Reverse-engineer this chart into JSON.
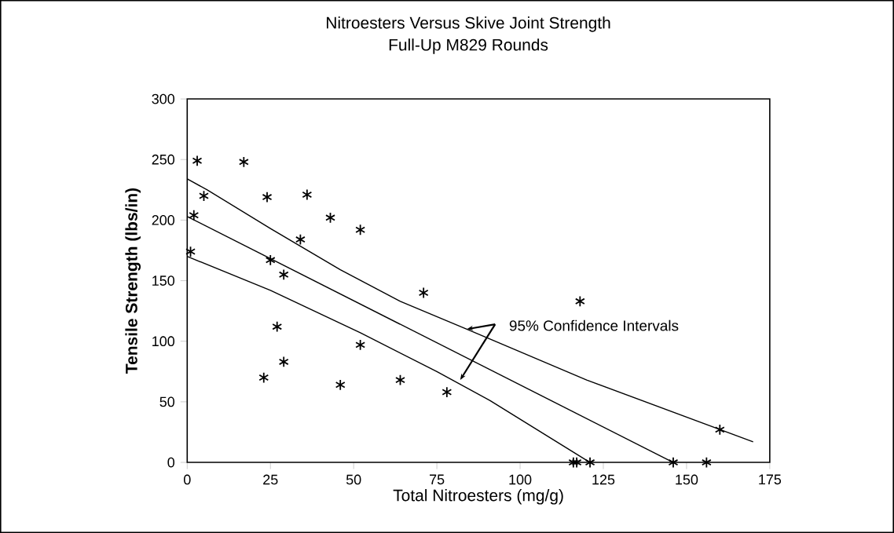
{
  "chart_data": {
    "type": "scatter",
    "title": "Nitroesters Versus Skive Joint Strength",
    "subtitle": "Full-Up M829 Rounds",
    "xlabel": "Total Nitroesters (mg/g)",
    "ylabel": "Tensile Strength (lbs/in)",
    "xlim": [
      0,
      175
    ],
    "ylim": [
      0,
      300
    ],
    "xticks": [
      0,
      25,
      50,
      75,
      100,
      125,
      150,
      175
    ],
    "yticks": [
      0,
      50,
      100,
      150,
      200,
      250,
      300
    ],
    "series": [
      {
        "marker": "cross",
        "color": "#000000",
        "x": [
          3,
          17,
          5,
          24,
          36,
          2,
          43,
          52,
          34,
          1,
          25,
          29,
          71,
          27,
          52,
          29,
          23,
          46,
          64,
          78,
          118,
          160,
          116,
          117,
          121,
          146,
          156
        ],
        "values": [
          249,
          248,
          220,
          219,
          221,
          204,
          202,
          192,
          184,
          174,
          167,
          155,
          140,
          112,
          97,
          83,
          70,
          64,
          68,
          58,
          133,
          27,
          0,
          0,
          0,
          0,
          0
        ]
      },
      {
        "type": "line",
        "marker": "none",
        "color": "#000000",
        "x": [
          0,
          146
        ],
        "values": [
          203,
          0
        ]
      },
      {
        "type": "line",
        "marker": "none",
        "color": "#000000",
        "x": [
          0,
          6,
          25,
          46,
          64,
          84,
          120,
          170
        ],
        "values": [
          234,
          225,
          193,
          159,
          133,
          110,
          68,
          17
        ]
      },
      {
        "type": "line",
        "marker": "none",
        "color": "#000000",
        "x": [
          0,
          25,
          52,
          75,
          91,
          121
        ],
        "values": [
          170,
          142,
          107,
          75,
          51,
          0
        ]
      }
    ],
    "annotations": [
      "95% Confidence Intervals"
    ]
  }
}
